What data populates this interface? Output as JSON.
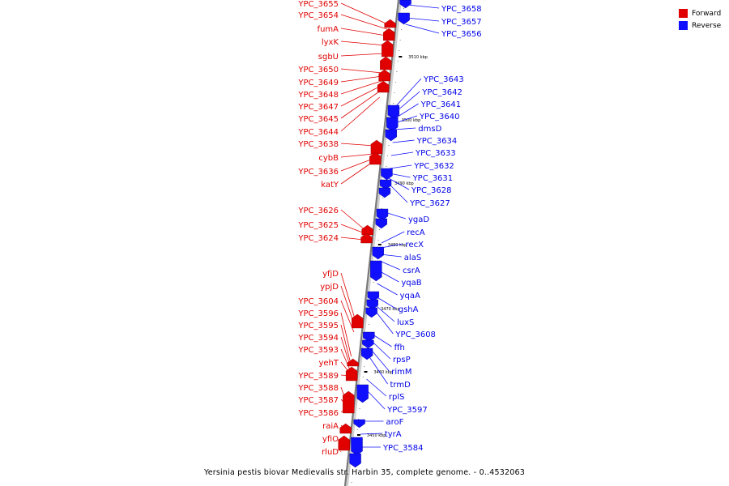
{
  "legend": {
    "forward_label": "Forward",
    "reverse_label": "Reverse",
    "forward_color": "#e00000",
    "reverse_color": "#1010ff"
  },
  "caption": "Yersinia pestis biovar Medievalis str. Harbin 35, complete genome. - 0..4532063",
  "ticks": [
    "3510 kbp",
    "3500 kbp",
    "3490 kbp",
    "3480 kbp",
    "3470 kbp",
    "3460 kbp",
    "3450 kbp"
  ],
  "forward_genes": [
    "YPC_3655",
    "YPC_3654",
    "fumA",
    "lyxK",
    "sgbU",
    "YPC_3650",
    "YPC_3649",
    "YPC_3648",
    "YPC_3647",
    "YPC_3645",
    "YPC_3644",
    "YPC_3638",
    "cybB",
    "YPC_3636",
    "katY",
    "YPC_3626",
    "YPC_3625",
    "YPC_3624",
    "yfjD",
    "ypjD",
    "YPC_3604",
    "YPC_3596",
    "YPC_3595",
    "YPC_3594",
    "YPC_3593",
    "yehT",
    "YPC_3589",
    "YPC_3588",
    "YPC_3587",
    "YPC_3586",
    "raiA",
    "yfiO",
    "rluD"
  ],
  "reverse_genes": [
    "YPC_3658",
    "YPC_3657",
    "YPC_3656",
    "YPC_3643",
    "YPC_3642",
    "YPC_3641",
    "YPC_3640",
    "dmsD",
    "YPC_3634",
    "YPC_3633",
    "YPC_3632",
    "YPC_3631",
    "YPC_3628",
    "YPC_3627",
    "ygaD",
    "recA",
    "recX",
    "alaS",
    "csrA",
    "yqaB",
    "yqaA",
    "gshA",
    "luxS",
    "YPC_3608",
    "ffh",
    "rpsP",
    "rimM",
    "trmD",
    "rplS",
    "YPC_3597",
    "aroF",
    "tyrA",
    "YPC_3584"
  ]
}
